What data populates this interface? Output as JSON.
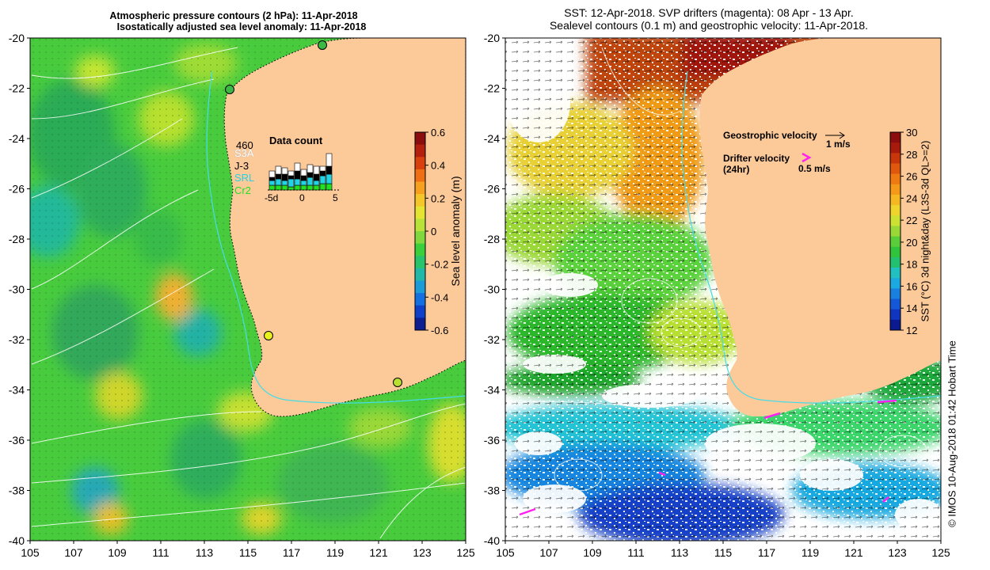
{
  "left_panel": {
    "title_line1": "Atmospheric pressure contours (2 hPa): 11-Apr-2018",
    "title_line2": "Isostatically adjusted sea level anomaly: 11-Apr-2018",
    "y_ticks": [
      "-20",
      "-22",
      "-24",
      "-26",
      "-28",
      "-30",
      "-32",
      "-34",
      "-36",
      "-38",
      "-40"
    ],
    "x_ticks": [
      "105",
      "107",
      "109",
      "111",
      "113",
      "115",
      "117",
      "119",
      "121",
      "123",
      "125"
    ],
    "data_count": {
      "title": "Data count",
      "max_label": "460",
      "legend": [
        {
          "label": "S3A",
          "color": "#ffffff"
        },
        {
          "label": "J-3",
          "color": "#000000"
        },
        {
          "label": "SRL",
          "color": "#22d3e6"
        },
        {
          "label": "Cr2",
          "color": "#22e022"
        }
      ],
      "x_labels": [
        "-5d",
        "0",
        "5"
      ]
    },
    "colorbar": {
      "label": "Sea level anomaly (m)",
      "ticks": [
        "0.6",
        "0.4",
        "0.2",
        "0",
        "-0.2",
        "-0.4",
        "-0.6"
      ]
    }
  },
  "right_panel": {
    "title_line1": "SST: 12-Apr-2018. SVP drifters (magenta): 08 Apr - 13 Apr.",
    "title_line2": "Sealevel contours (0.1 m) and geostrophic velocity: 11-Apr-2018.",
    "y_ticks": [
      "-20",
      "-22",
      "-24",
      "-26",
      "-28",
      "-30",
      "-32",
      "-34",
      "-36",
      "-38",
      "-40"
    ],
    "x_ticks": [
      "105",
      "107",
      "109",
      "111",
      "113",
      "115",
      "117",
      "119",
      "121",
      "123",
      "125"
    ],
    "legend": {
      "geo_label": "Geostrophic velocity",
      "geo_scale": "1 m/s",
      "drifter_label": "Drifter velocity",
      "drifter_sub": "(24hr)",
      "drifter_scale": "0.5 m/s"
    },
    "colorbar": {
      "label": "SST (°C) 3d night&day (L3S-3d QL>=2)",
      "ticks": [
        "30",
        "28",
        "26",
        "24",
        "22",
        "20",
        "18",
        "16",
        "14",
        "12"
      ]
    }
  },
  "credit": "© IMOS 10-Aug-2018 01:42 Hobart Time",
  "colors": {
    "land": "#fcc999",
    "sla_green": "#3cd43c",
    "coast_dots": "#000000",
    "drifter": "#ff22ee"
  }
}
